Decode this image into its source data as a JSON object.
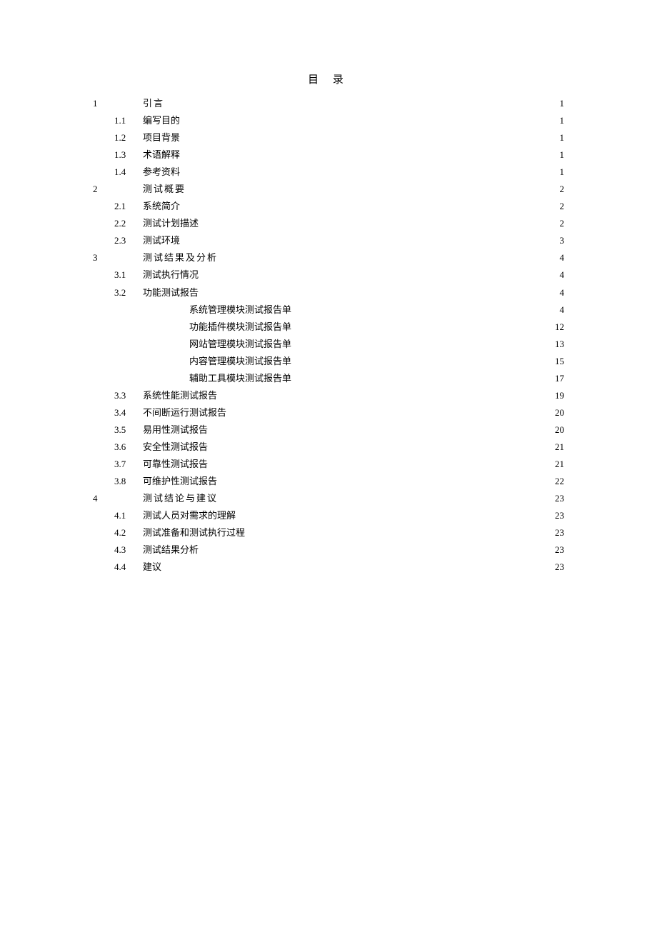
{
  "title": "目 录",
  "entries": [
    {
      "level": 1,
      "num1": "1",
      "num2": "",
      "title": "引言",
      "page": "1",
      "sparse": true
    },
    {
      "level": 2,
      "num1": "",
      "num2": "1.1",
      "title": "编写目的",
      "page": "1",
      "sparse": false
    },
    {
      "level": 2,
      "num1": "",
      "num2": "1.2",
      "title": "项目背景",
      "page": "1",
      "sparse": false
    },
    {
      "level": 2,
      "num1": "",
      "num2": "1.3",
      "title": "术语解释",
      "page": "1",
      "sparse": false
    },
    {
      "level": 2,
      "num1": "",
      "num2": "1.4",
      "title": "参考资料",
      "page": "1",
      "sparse": false
    },
    {
      "level": 1,
      "num1": "2",
      "num2": "",
      "title": "测试概要",
      "page": "2",
      "sparse": true
    },
    {
      "level": 2,
      "num1": "",
      "num2": "2.1",
      "title": "系统简介",
      "page": "2",
      "sparse": false
    },
    {
      "level": 2,
      "num1": "",
      "num2": "2.2",
      "title": "测试计划描述",
      "page": "2",
      "sparse": false
    },
    {
      "level": 2,
      "num1": "",
      "num2": "2.3",
      "title": "测试环境",
      "page": "3",
      "sparse": false
    },
    {
      "level": 1,
      "num1": "3",
      "num2": "",
      "title": "测试结果及分析",
      "page": "4",
      "sparse": true
    },
    {
      "level": 2,
      "num1": "",
      "num2": "3.1",
      "title": "测试执行情况",
      "page": "4",
      "sparse": false
    },
    {
      "level": 2,
      "num1": "",
      "num2": "3.2",
      "title": "功能测试报告",
      "page": "4",
      "sparse": false
    },
    {
      "level": 3,
      "num1": "",
      "num2": "",
      "title": "系统管理模块测试报告单",
      "page": "4",
      "sparse": false
    },
    {
      "level": 3,
      "num1": "",
      "num2": "",
      "title": "功能插件模块测试报告单",
      "page": "12",
      "sparse": false
    },
    {
      "level": 3,
      "num1": "",
      "num2": "",
      "title": "网站管理模块测试报告单",
      "page": "13",
      "sparse": false
    },
    {
      "level": 3,
      "num1": "",
      "num2": "",
      "title": "内容管理模块测试报告单",
      "page": "15",
      "sparse": false
    },
    {
      "level": 3,
      "num1": "",
      "num2": "",
      "title": "辅助工具模块测试报告单",
      "page": "17",
      "sparse": false
    },
    {
      "level": 2,
      "num1": "",
      "num2": "3.3",
      "title": "系统性能测试报告",
      "page": "19",
      "sparse": false
    },
    {
      "level": 2,
      "num1": "",
      "num2": "3.4",
      "title": "不间断运行测试报告",
      "page": "20",
      "sparse": false
    },
    {
      "level": 2,
      "num1": "",
      "num2": "3.5",
      "title": "易用性测试报告",
      "page": "20",
      "sparse": false
    },
    {
      "level": 2,
      "num1": "",
      "num2": "3.6",
      "title": "安全性测试报告",
      "page": "21",
      "sparse": false
    },
    {
      "level": 2,
      "num1": "",
      "num2": "3.7",
      "title": "可靠性测试报告",
      "page": "21",
      "sparse": false
    },
    {
      "level": 2,
      "num1": "",
      "num2": "3.8",
      "title": "可维护性测试报告",
      "page": "22",
      "sparse": false
    },
    {
      "level": 1,
      "num1": "4",
      "num2": "",
      "title": "测试结论与建议",
      "page": "23",
      "sparse": true
    },
    {
      "level": 2,
      "num1": "",
      "num2": "4.1",
      "title": "测试人员对需求的理解",
      "page": "23",
      "sparse": false
    },
    {
      "level": 2,
      "num1": "",
      "num2": "4.2",
      "title": "测试准备和测试执行过程",
      "page": "23",
      "sparse": false
    },
    {
      "level": 2,
      "num1": "",
      "num2": "4.3",
      "title": "测试结果分析",
      "page": "23",
      "sparse": false
    },
    {
      "level": 2,
      "num1": "",
      "num2": "4.4",
      "title": "建议",
      "page": "23",
      "sparse": false
    }
  ],
  "colors": {
    "background": "#ffffff",
    "text": "#000000"
  },
  "fonts": {
    "title_size": 15,
    "entry_size": 13,
    "family": "SimSun"
  }
}
